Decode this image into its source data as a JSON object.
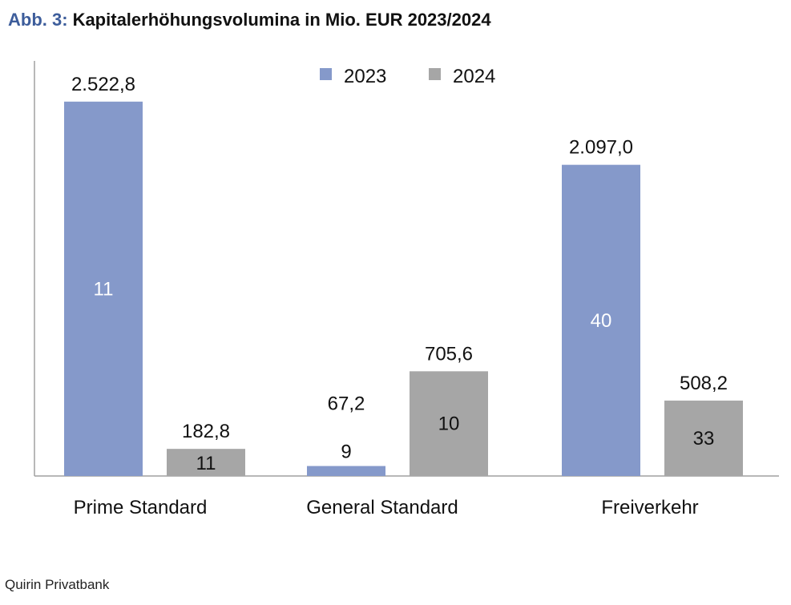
{
  "figure": {
    "label": "Abb. 3:",
    "title": "Kapitalerhöhungsvolumina in Mio. EUR 2023/2024"
  },
  "source": "Quirin Privatbank",
  "chart_data": {
    "type": "bar",
    "categories": [
      "Prime Standard",
      "General Standard",
      "Freiverkehr"
    ],
    "series": [
      {
        "name": "2023",
        "color": "#8599ca",
        "values": [
          2522.8,
          67.2,
          2097.0
        ],
        "value_labels": [
          "2.522,8",
          "67,2",
          "2.097,0"
        ],
        "inner_labels": [
          "11",
          "9",
          "40"
        ],
        "inner_label_color": "#ffffff"
      },
      {
        "name": "2024",
        "color": "#a6a6a6",
        "values": [
          182.8,
          705.6,
          508.2
        ],
        "value_labels": [
          "182,8",
          "705,6",
          "508,2"
        ],
        "inner_labels": [
          "11",
          "10",
          "33"
        ],
        "inner_label_color": "#111111"
      }
    ],
    "ylim": [
      0,
      2700
    ],
    "grid": false,
    "legend": "top-center",
    "axis_color": "#a0a0a0"
  }
}
